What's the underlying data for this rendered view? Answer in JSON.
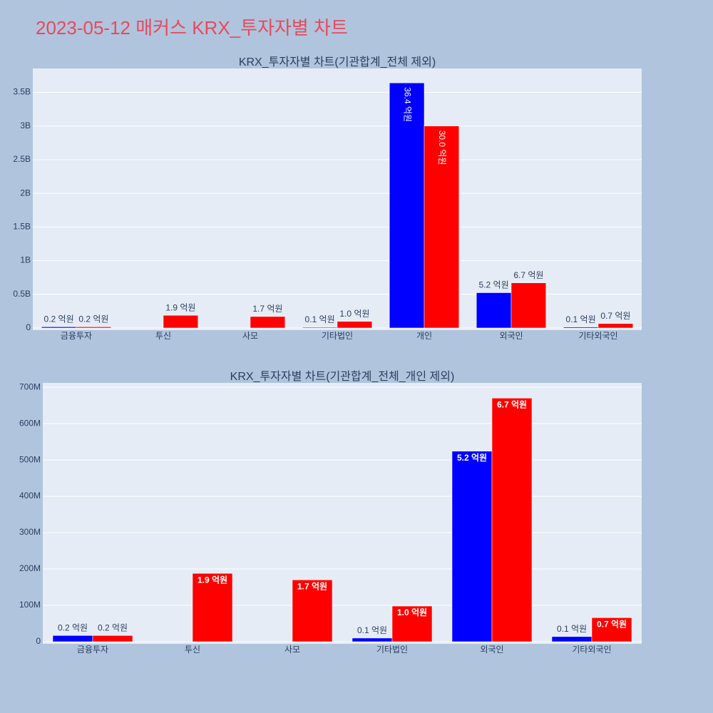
{
  "title": "2023-05-12 매커스 KRX_투자자별 차트",
  "chart_data": [
    {
      "type": "bar",
      "title": "KRX_투자자별 차트(기관합계_전체 제외)",
      "categories": [
        "금융투자",
        "투신",
        "사모",
        "기타법인",
        "개인",
        "외국인",
        "기타외국인"
      ],
      "series": [
        {
          "color": "#0000ff",
          "values": [
            17000000,
            null,
            null,
            10000000,
            3640000000,
            524000000,
            14000000
          ],
          "value_labels": [
            "0.2 억원",
            null,
            null,
            "0.1 억원",
            "36.4 억원",
            "5.2 억원",
            "0.1 억원"
          ]
        },
        {
          "color": "#ff0000",
          "values": [
            17000000,
            188000000,
            170000000,
            98000000,
            3000000000,
            670000000,
            66000000
          ],
          "value_labels": [
            "0.2 억원",
            "1.9 억원",
            "1.7 억원",
            "1.0 억원",
            "30.0 억원",
            "6.7 억원",
            "0.7 억원"
          ]
        }
      ],
      "ylim": [
        0,
        3855000000
      ],
      "yticks": [
        0,
        {
          "value": 500000000,
          "label": "0.5B"
        },
        {
          "value": 1000000000,
          "label": "1B"
        },
        {
          "value": 1500000000,
          "label": "1.5B"
        },
        {
          "value": 2000000000,
          "label": "2B"
        },
        {
          "value": 2500000000,
          "label": "2.5B"
        },
        {
          "value": 3000000000,
          "label": "3B"
        },
        {
          "value": 3500000000,
          "label": "3.5B"
        }
      ],
      "grid": true
    },
    {
      "type": "bar",
      "title": "KRX_투자자별 차트(기관합계_전체_개인 제외)",
      "categories": [
        "금융투자",
        "투신",
        "사모",
        "기타법인",
        "외국인",
        "기타외국인"
      ],
      "series": [
        {
          "color": "#0000ff",
          "values": [
            17000000,
            null,
            null,
            10000000,
            524000000,
            14000000
          ],
          "value_labels": [
            "0.2 억원",
            null,
            null,
            "0.1 억원",
            "5.2 억원",
            "0.1 억원"
          ]
        },
        {
          "color": "#ff0000",
          "values": [
            17000000,
            188000000,
            170000000,
            98000000,
            670000000,
            66000000
          ],
          "value_labels": [
            "0.2 억원",
            "1.9 억원",
            "1.7 억원",
            "1.0 억원",
            "6.7 억원",
            "0.7 억원"
          ]
        }
      ],
      "ylim": [
        0,
        712000000
      ],
      "yticks": [
        0,
        {
          "value": 100000000,
          "label": "100M"
        },
        {
          "value": 200000000,
          "label": "200M"
        },
        {
          "value": 300000000,
          "label": "300M"
        },
        {
          "value": 400000000,
          "label": "400M"
        },
        {
          "value": 500000000,
          "label": "500M"
        },
        {
          "value": 600000000,
          "label": "600M"
        },
        {
          "value": 700000000,
          "label": "700M"
        }
      ],
      "grid": true
    }
  ]
}
